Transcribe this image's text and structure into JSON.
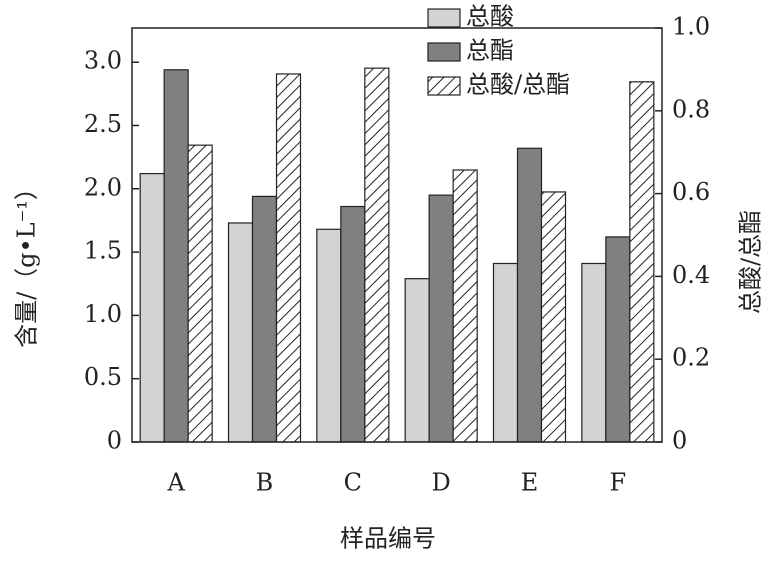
{
  "chart_data": {
    "type": "bar",
    "xlabel": "样品编号",
    "ylabel": "含量/（g•L⁻¹）",
    "y2label": "总酸/总酯",
    "categories": [
      "A",
      "B",
      "C",
      "D",
      "E",
      "F"
    ],
    "series": [
      {
        "name": "总酸",
        "color": "#d3d3d3",
        "values": [
          2.12,
          1.73,
          1.68,
          1.29,
          1.41,
          1.41
        ]
      },
      {
        "name": "总酯",
        "color": "#808080",
        "values": [
          2.94,
          1.94,
          1.86,
          1.95,
          2.32,
          1.62
        ]
      },
      {
        "name": "总酸/总酯",
        "color": "#ffffff",
        "pattern": "hatch",
        "axis": "y2",
        "values": [
          0.717,
          0.889,
          0.903,
          0.657,
          0.604,
          0.87
        ]
      }
    ],
    "ylim": [
      0,
      3.27
    ],
    "yticks": [
      0,
      0.5,
      {
        "value": 1,
        "label": "1.0"
      },
      1.5,
      {
        "value": 2,
        "label": "2.0"
      },
      2.5,
      {
        "value": 3,
        "label": "3.0"
      }
    ],
    "y2lim": [
      0,
      1
    ],
    "y2ticks": [
      0,
      0.2,
      0.4,
      0.6,
      0.8,
      {
        "value": 1,
        "label": "1.0"
      }
    ],
    "legend": "top"
  }
}
